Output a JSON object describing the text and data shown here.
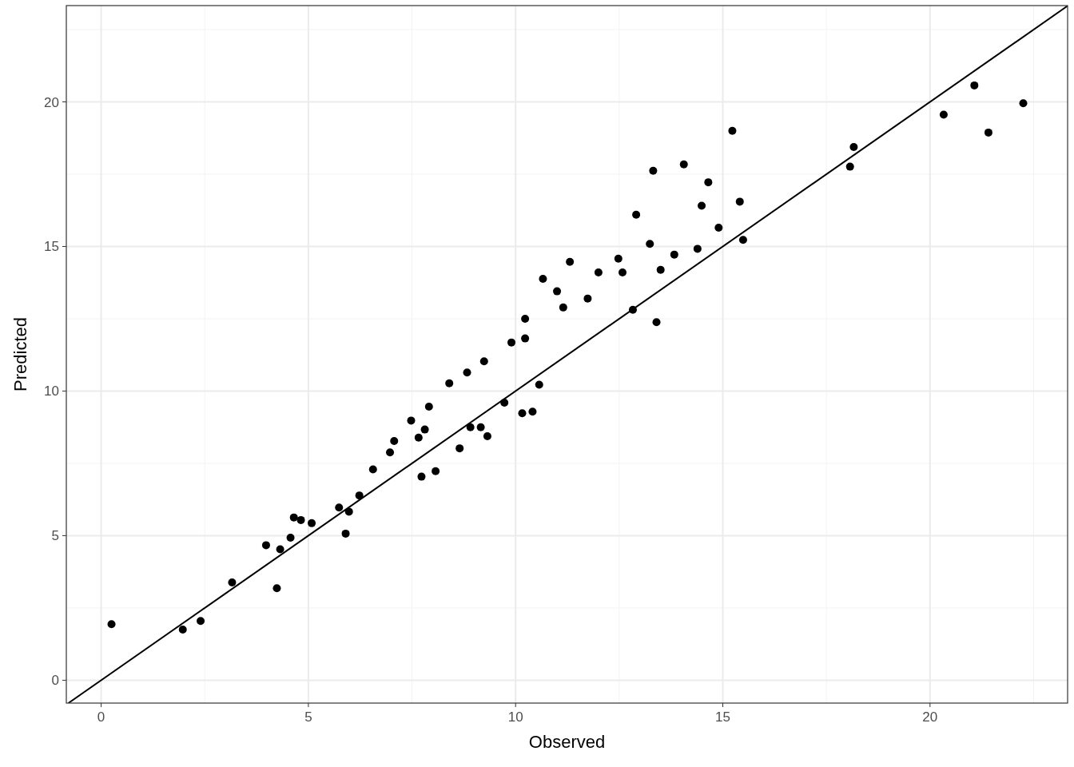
{
  "chart_data": {
    "type": "scatter",
    "xlabel": "Observed",
    "ylabel": "Predicted",
    "xlim": [
      -0.84,
      23.32
    ],
    "ylim": [
      -0.79,
      23.33
    ],
    "xticks": [
      0,
      5,
      10,
      15,
      20
    ],
    "yticks": [
      0,
      5,
      10,
      15,
      20
    ],
    "grid": true,
    "series": [
      {
        "marker": "circle",
        "color": "#000000",
        "x": [
          0.25,
          1.97,
          2.4,
          3.16,
          3.98,
          4.24,
          4.32,
          4.57,
          4.65,
          4.82,
          5.08,
          5.74,
          5.9,
          5.98,
          6.23,
          6.56,
          6.97,
          7.07,
          7.48,
          7.66,
          7.73,
          7.81,
          7.91,
          8.07,
          8.4,
          8.65,
          8.83,
          8.91,
          9.16,
          9.24,
          9.32,
          9.73,
          9.9,
          10.16,
          10.23,
          10.23,
          10.41,
          10.57,
          10.66,
          11.0,
          11.15,
          11.31,
          11.74,
          12.0,
          12.48,
          12.58,
          12.83,
          12.91,
          13.24,
          13.32,
          13.4,
          13.5,
          13.83,
          14.06,
          14.39,
          14.49,
          14.65,
          14.9,
          15.23,
          15.41,
          15.49,
          18.07,
          18.16,
          20.33,
          21.07,
          21.41,
          22.25
        ],
        "values": [
          1.94,
          1.75,
          2.05,
          3.38,
          4.67,
          3.18,
          4.53,
          4.93,
          5.63,
          5.54,
          5.43,
          5.97,
          5.07,
          5.83,
          6.39,
          7.29,
          7.88,
          8.27,
          8.98,
          8.39,
          7.04,
          8.67,
          9.46,
          7.23,
          10.27,
          8.02,
          10.64,
          8.75,
          8.75,
          11.03,
          8.44,
          9.6,
          11.68,
          9.23,
          11.82,
          12.5,
          9.29,
          10.22,
          13.88,
          13.45,
          12.89,
          14.47,
          13.2,
          14.1,
          14.58,
          14.1,
          12.81,
          16.1,
          15.09,
          17.62,
          12.38,
          14.19,
          14.72,
          17.84,
          14.92,
          16.41,
          17.22,
          15.65,
          19.0,
          16.55,
          15.23,
          17.76,
          18.44,
          19.56,
          20.57,
          18.94,
          19.95
        ]
      },
      {
        "type": "line",
        "color": "#000000",
        "x": [
          -0.79,
          23.32
        ],
        "values": [
          -0.79,
          23.32
        ]
      }
    ]
  }
}
